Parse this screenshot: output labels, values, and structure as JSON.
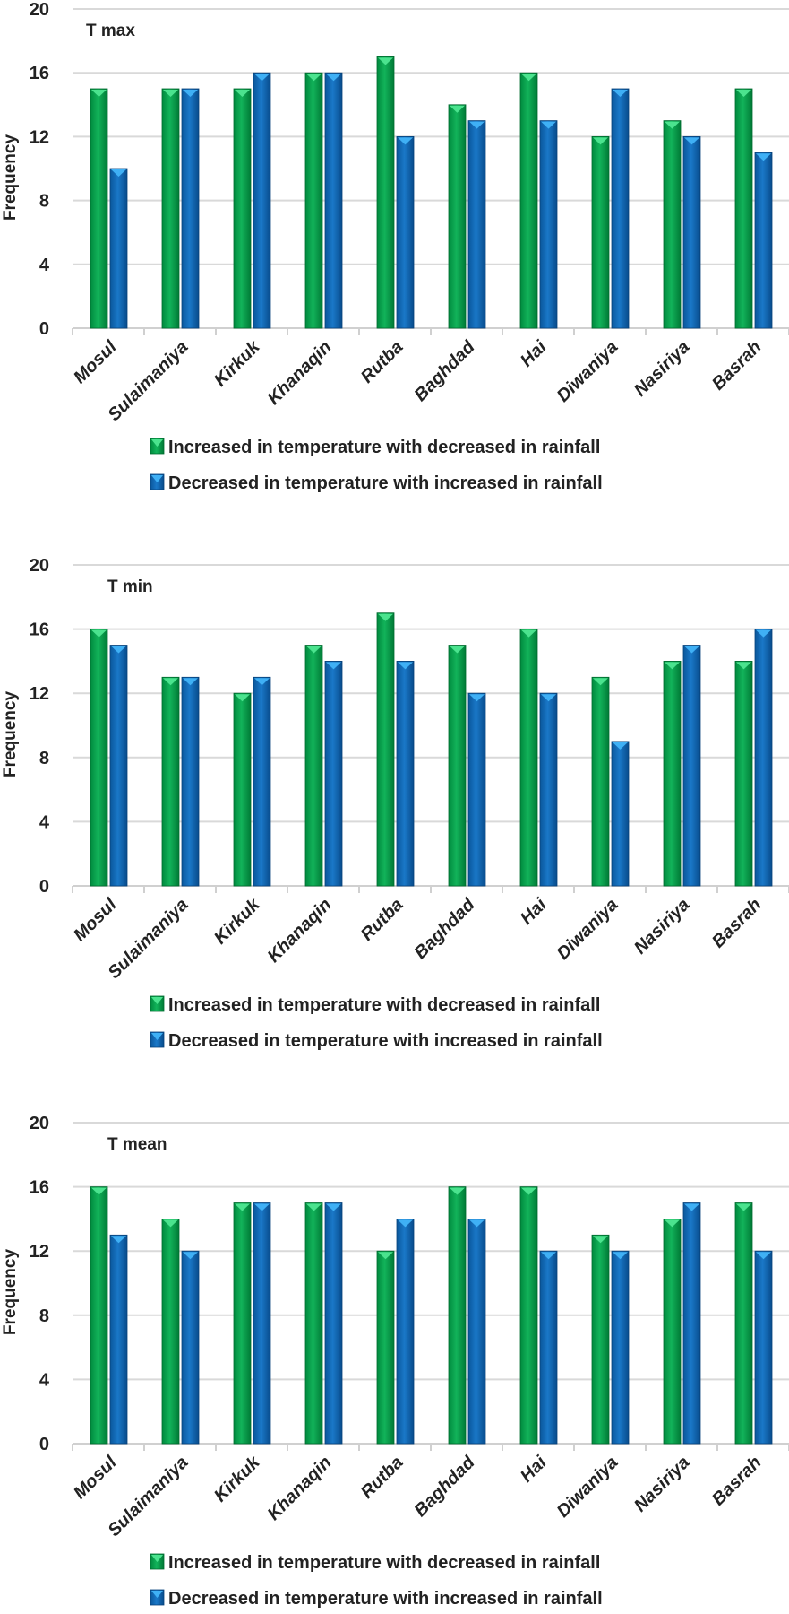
{
  "chart_data": [
    {
      "type": "bar",
      "title": "T max",
      "xlabel": "",
      "ylabel": "Frequency",
      "ylim": [
        0,
        20
      ],
      "yticks": [
        0,
        4,
        8,
        12,
        16,
        20
      ],
      "grid": true,
      "legend_position": "bottom",
      "categories": [
        "Mosul",
        "Sulaimaniya",
        "Kirkuk",
        "Khanaqin",
        "Rutba",
        "Baghdad",
        "Hai",
        "Diwaniya",
        "Nasiriya",
        "Basrah"
      ],
      "series": [
        {
          "name": "Increased in temperature with decreased in rainfall",
          "color": "#00A651",
          "values": [
            15,
            15,
            15,
            16,
            17,
            14,
            16,
            12,
            13,
            15
          ]
        },
        {
          "name": "Decreased in temperature with increased in rainfall",
          "color": "#0B6BB8",
          "values": [
            10,
            15,
            16,
            16,
            12,
            13,
            13,
            15,
            12,
            11
          ]
        }
      ]
    },
    {
      "type": "bar",
      "title": "T min",
      "xlabel": "",
      "ylabel": "Frequency",
      "ylim": [
        0,
        20
      ],
      "yticks": [
        0,
        4,
        8,
        12,
        16,
        20
      ],
      "grid": true,
      "legend_position": "bottom",
      "categories": [
        "Mosul",
        "Sulaimaniya",
        "Kirkuk",
        "Khanaqin",
        "Rutba",
        "Baghdad",
        "Hai",
        "Diwaniya",
        "Nasiriya",
        "Basrah"
      ],
      "series": [
        {
          "name": "Increased in temperature with decreased in rainfall",
          "color": "#00A651",
          "values": [
            16,
            13,
            12,
            15,
            17,
            15,
            16,
            13,
            14,
            14
          ]
        },
        {
          "name": "Decreased in temperature with increased in rainfall",
          "color": "#0B6BB8",
          "values": [
            15,
            13,
            13,
            14,
            14,
            12,
            12,
            9,
            15,
            16
          ]
        }
      ]
    },
    {
      "type": "bar",
      "title": "T mean",
      "xlabel": "",
      "ylabel": "Frequency",
      "ylim": [
        0,
        20
      ],
      "yticks": [
        0,
        4,
        8,
        12,
        16,
        20
      ],
      "grid": true,
      "legend_position": "bottom",
      "categories": [
        "Mosul",
        "Sulaimaniya",
        "Kirkuk",
        "Khanaqin",
        "Rutba",
        "Baghdad",
        "Hai",
        "Diwaniya",
        "Nasiriya",
        "Basrah"
      ],
      "series": [
        {
          "name": "Increased in temperature with decreased in rainfall",
          "color": "#00A651",
          "values": [
            16,
            14,
            15,
            15,
            12,
            16,
            16,
            13,
            14,
            15
          ]
        },
        {
          "name": "Decreased in temperature with increased in rainfall",
          "color": "#0B6BB8",
          "values": [
            13,
            12,
            15,
            15,
            14,
            14,
            12,
            12,
            15,
            12
          ]
        }
      ]
    }
  ]
}
